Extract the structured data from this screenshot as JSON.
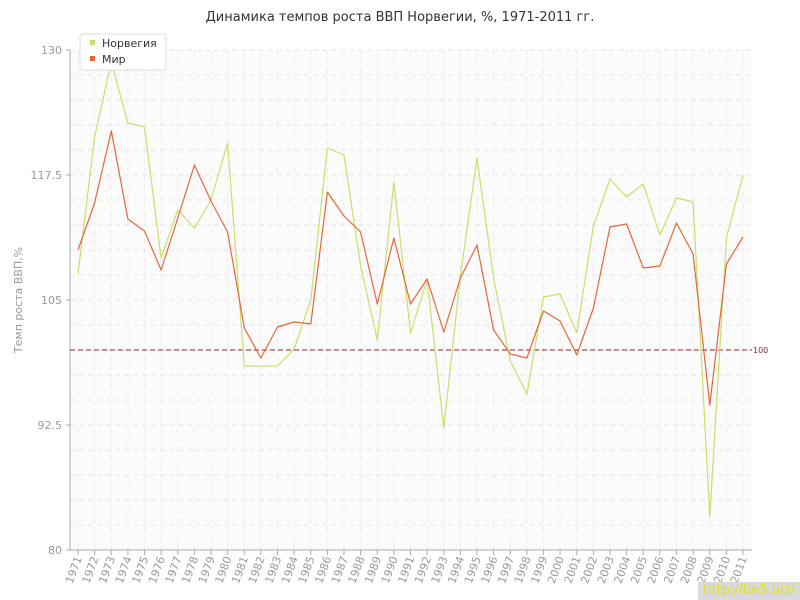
{
  "chart_data": {
    "type": "line",
    "title": "Динамика темпов роста ВВП Норвегии, %, 1971-2011 гг.",
    "ylabel": "Темп роста ВВП,%",
    "xlabel": "",
    "ylim": [
      80,
      130
    ],
    "yticks": [
      "80",
      "92.5",
      "105",
      "117.5",
      "130"
    ],
    "grid": true,
    "legend_position": "top-left",
    "x": [
      "1971",
      "1972",
      "1973",
      "1974",
      "1975",
      "1976",
      "1977",
      "1978",
      "1979",
      "1980",
      "1981",
      "1982",
      "1983",
      "1984",
      "1985",
      "1986",
      "1987",
      "1988",
      "1989",
      "1990",
      "1991",
      "1992",
      "1993",
      "1994",
      "1995",
      "1996",
      "1997",
      "1998",
      "1999",
      "2000",
      "2001",
      "2002",
      "2003",
      "2004",
      "2005",
      "2006",
      "2007",
      "2008",
      "2009",
      "2010",
      "2011"
    ],
    "series": [
      {
        "name": "Норвегия",
        "color": "#c6e16b",
        "values": [
          107.6,
          121.3,
          128.8,
          122.7,
          122.3,
          109.2,
          114.0,
          112.2,
          115.0,
          120.7,
          98.4,
          98.4,
          98.4,
          100.1,
          105.0,
          120.2,
          119.5,
          108.4,
          101.0,
          116.8,
          101.7,
          107.0,
          92.2,
          107.4,
          119.2,
          107.2,
          98.9,
          95.6,
          105.3,
          105.6,
          101.7,
          112.4,
          117.1,
          115.3,
          116.6,
          111.5,
          115.2,
          114.8,
          83.3,
          111.2,
          117.5
        ]
      },
      {
        "name": "Мир",
        "color": "#e4673a",
        "values": [
          110.0,
          114.7,
          121.9,
          113.1,
          111.9,
          108.0,
          113.2,
          118.5,
          114.9,
          111.8,
          102.2,
          99.2,
          102.3,
          102.8,
          102.6,
          115.8,
          113.4,
          111.8,
          104.6,
          111.2,
          104.6,
          107.1,
          101.8,
          107.2,
          110.5,
          102.0,
          99.6,
          99.2,
          103.9,
          102.9,
          99.5,
          104.2,
          112.3,
          112.6,
          108.2,
          108.4,
          112.7,
          109.6,
          94.5,
          108.6,
          111.3
        ]
      }
    ],
    "reference_line": {
      "value": 100,
      "label": "100",
      "color": "#8b2232"
    }
  },
  "watermark": "http://be5.biz/"
}
